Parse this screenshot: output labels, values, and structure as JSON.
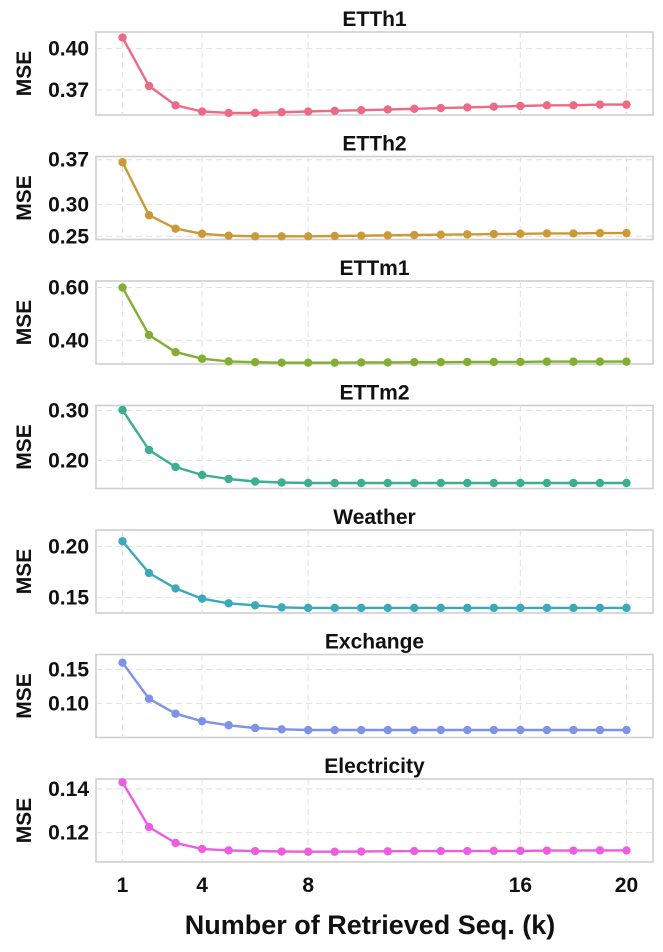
{
  "chart_data": {
    "type": "line",
    "xlabel": "Number of Retrieved Seq. (k)",
    "x": [
      1,
      2,
      3,
      4,
      5,
      6,
      7,
      8,
      9,
      10,
      11,
      12,
      13,
      14,
      15,
      16,
      17,
      18,
      19,
      20
    ],
    "xticks": [
      1,
      4,
      8,
      16,
      20
    ],
    "xlim": [
      0,
      21
    ],
    "grid": true,
    "panels": [
      {
        "title": "ETTh1",
        "ylabel": "MSE",
        "color": "#ec6a86",
        "ylim": [
          0.352,
          0.412
        ],
        "yticks": [
          0.37,
          0.4
        ],
        "ytick_labels": [
          "0.37",
          "0.40"
        ],
        "values": [
          0.408,
          0.373,
          0.359,
          0.3545,
          0.3535,
          0.3535,
          0.354,
          0.3545,
          0.355,
          0.3555,
          0.356,
          0.3565,
          0.357,
          0.3575,
          0.358,
          0.3585,
          0.359,
          0.359,
          0.3595,
          0.3595
        ]
      },
      {
        "title": "ETTh2",
        "ylabel": "MSE",
        "color": "#c99a37",
        "ylim": [
          0.245,
          0.375
        ],
        "yticks": [
          0.25,
          0.3,
          0.37
        ],
        "ytick_labels": [
          "0.25",
          "0.30",
          "0.37"
        ],
        "values": [
          0.366,
          0.283,
          0.262,
          0.254,
          0.251,
          0.25,
          0.25,
          0.25,
          0.2505,
          0.251,
          0.2515,
          0.252,
          0.2525,
          0.253,
          0.2535,
          0.254,
          0.2545,
          0.2545,
          0.255,
          0.255
        ]
      },
      {
        "title": "ETTm1",
        "ylabel": "MSE",
        "color": "#82ae33",
        "ylim": [
          0.31,
          0.625
        ],
        "yticks": [
          0.4,
          0.6
        ],
        "ytick_labels": [
          "0.40",
          "0.60"
        ],
        "values": [
          0.6,
          0.42,
          0.355,
          0.33,
          0.32,
          0.317,
          0.315,
          0.315,
          0.315,
          0.316,
          0.316,
          0.317,
          0.317,
          0.318,
          0.318,
          0.318,
          0.319,
          0.319,
          0.319,
          0.319
        ]
      },
      {
        "title": "ETTm2",
        "ylabel": "MSE",
        "color": "#3dae8f",
        "ylim": [
          0.144,
          0.31
        ],
        "yticks": [
          0.2,
          0.3
        ],
        "ytick_labels": [
          "0.20",
          "0.30"
        ],
        "values": [
          0.301,
          0.221,
          0.187,
          0.171,
          0.163,
          0.158,
          0.156,
          0.155,
          0.155,
          0.155,
          0.155,
          0.155,
          0.155,
          0.155,
          0.155,
          0.155,
          0.155,
          0.155,
          0.155,
          0.155
        ]
      },
      {
        "title": "Weather",
        "ylabel": "MSE",
        "color": "#3aa9bb",
        "ylim": [
          0.135,
          0.216
        ],
        "yticks": [
          0.15,
          0.2
        ],
        "ytick_labels": [
          "0.15",
          "0.20"
        ],
        "values": [
          0.205,
          0.174,
          0.159,
          0.149,
          0.1445,
          0.1425,
          0.1405,
          0.14,
          0.14,
          0.14,
          0.14,
          0.14,
          0.14,
          0.14,
          0.14,
          0.14,
          0.14,
          0.14,
          0.14,
          0.14
        ]
      },
      {
        "title": "Exchange",
        "ylabel": "MSE",
        "color": "#7e93e8",
        "ylim": [
          0.05,
          0.172
        ],
        "yticks": [
          0.1,
          0.15
        ],
        "ytick_labels": [
          "0.10",
          "0.15"
        ],
        "values": [
          0.16,
          0.107,
          0.085,
          0.074,
          0.068,
          0.064,
          0.062,
          0.061,
          0.061,
          0.061,
          0.061,
          0.061,
          0.061,
          0.061,
          0.061,
          0.061,
          0.061,
          0.061,
          0.061,
          0.061
        ]
      },
      {
        "title": "Electricity",
        "ylabel": "MSE",
        "color": "#ed5de0",
        "ylim": [
          0.1065,
          0.1445
        ],
        "yticks": [
          0.12,
          0.14
        ],
        "ytick_labels": [
          "0.12",
          "0.14"
        ],
        "values": [
          0.143,
          0.1225,
          0.1152,
          0.1125,
          0.1118,
          0.1115,
          0.1113,
          0.1112,
          0.1112,
          0.1113,
          0.1114,
          0.1115,
          0.1115,
          0.1115,
          0.1116,
          0.1116,
          0.1117,
          0.1117,
          0.1118,
          0.1118
        ]
      }
    ]
  }
}
